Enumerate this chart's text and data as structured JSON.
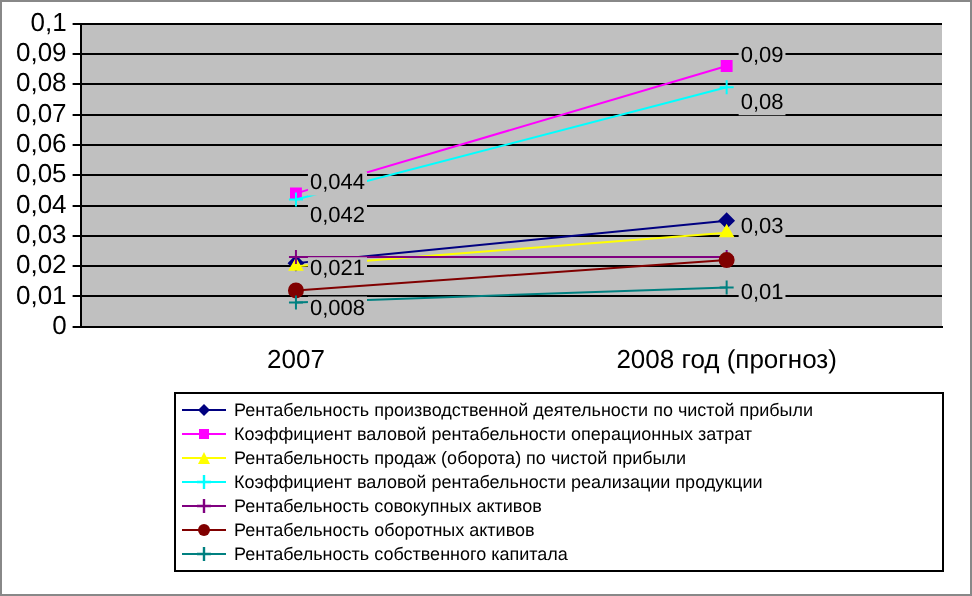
{
  "chart_data": {
    "type": "line",
    "categories": [
      "2007",
      "2008 год (прогноз)"
    ],
    "series": [
      {
        "name": "Рентабельность производственной деятельности по чистой прибыли",
        "color": "#000080",
        "marker": "diamond",
        "values": [
          0.021,
          0.035
        ],
        "value_labels": [
          "0,021",
          "0,03"
        ]
      },
      {
        "name": "Коэффициент валовой рентабельности операционных затрат",
        "color": "#ff00ff",
        "marker": "square",
        "values": [
          0.044,
          0.086
        ],
        "value_labels": [
          "0,044",
          "0,09"
        ]
      },
      {
        "name": "Рентабельность продаж (оборота) по чистой прибыли",
        "color": "#ffff00",
        "marker": "triangle",
        "values": [
          0.02,
          0.031
        ]
      },
      {
        "name": "Коэффициент валовой рентабельности реализации продукции",
        "color": "#00ffff",
        "marker": "cross",
        "values": [
          0.042,
          0.079
        ],
        "value_labels": [
          "0,042",
          "0,08"
        ]
      },
      {
        "name": "Рентабельность совокупных активов",
        "color": "#800080",
        "marker": "cross",
        "values": [
          0.023,
          0.023
        ]
      },
      {
        "name": "Рентабельность оборотных активов",
        "color": "#800000",
        "marker": "circle",
        "values": [
          0.012,
          0.022
        ]
      },
      {
        "name": "Рентабельность собственного капитала",
        "color": "#008080",
        "marker": "cross",
        "values": [
          0.008,
          0.013
        ],
        "value_labels": [
          "0,008",
          "0,01"
        ]
      }
    ],
    "ylim": [
      0,
      0.1
    ],
    "yticks": [
      0,
      {
        "value": 0.01,
        "label": "0,01"
      },
      {
        "value": 0.02,
        "label": "0,02"
      },
      {
        "value": 0.03,
        "label": "0,03"
      },
      {
        "value": 0.04,
        "label": "0,04"
      },
      {
        "value": 0.05,
        "label": "0,05"
      },
      {
        "value": 0.06,
        "label": "0,06"
      },
      {
        "value": 0.07,
        "label": "0,07"
      },
      {
        "value": 0.08,
        "label": "0,08"
      },
      {
        "value": 0.09,
        "label": "0,09"
      },
      {
        "value": 0.1,
        "label": "0,1"
      }
    ],
    "grid": "y",
    "legend": "bottom",
    "line_style": "solid"
  }
}
